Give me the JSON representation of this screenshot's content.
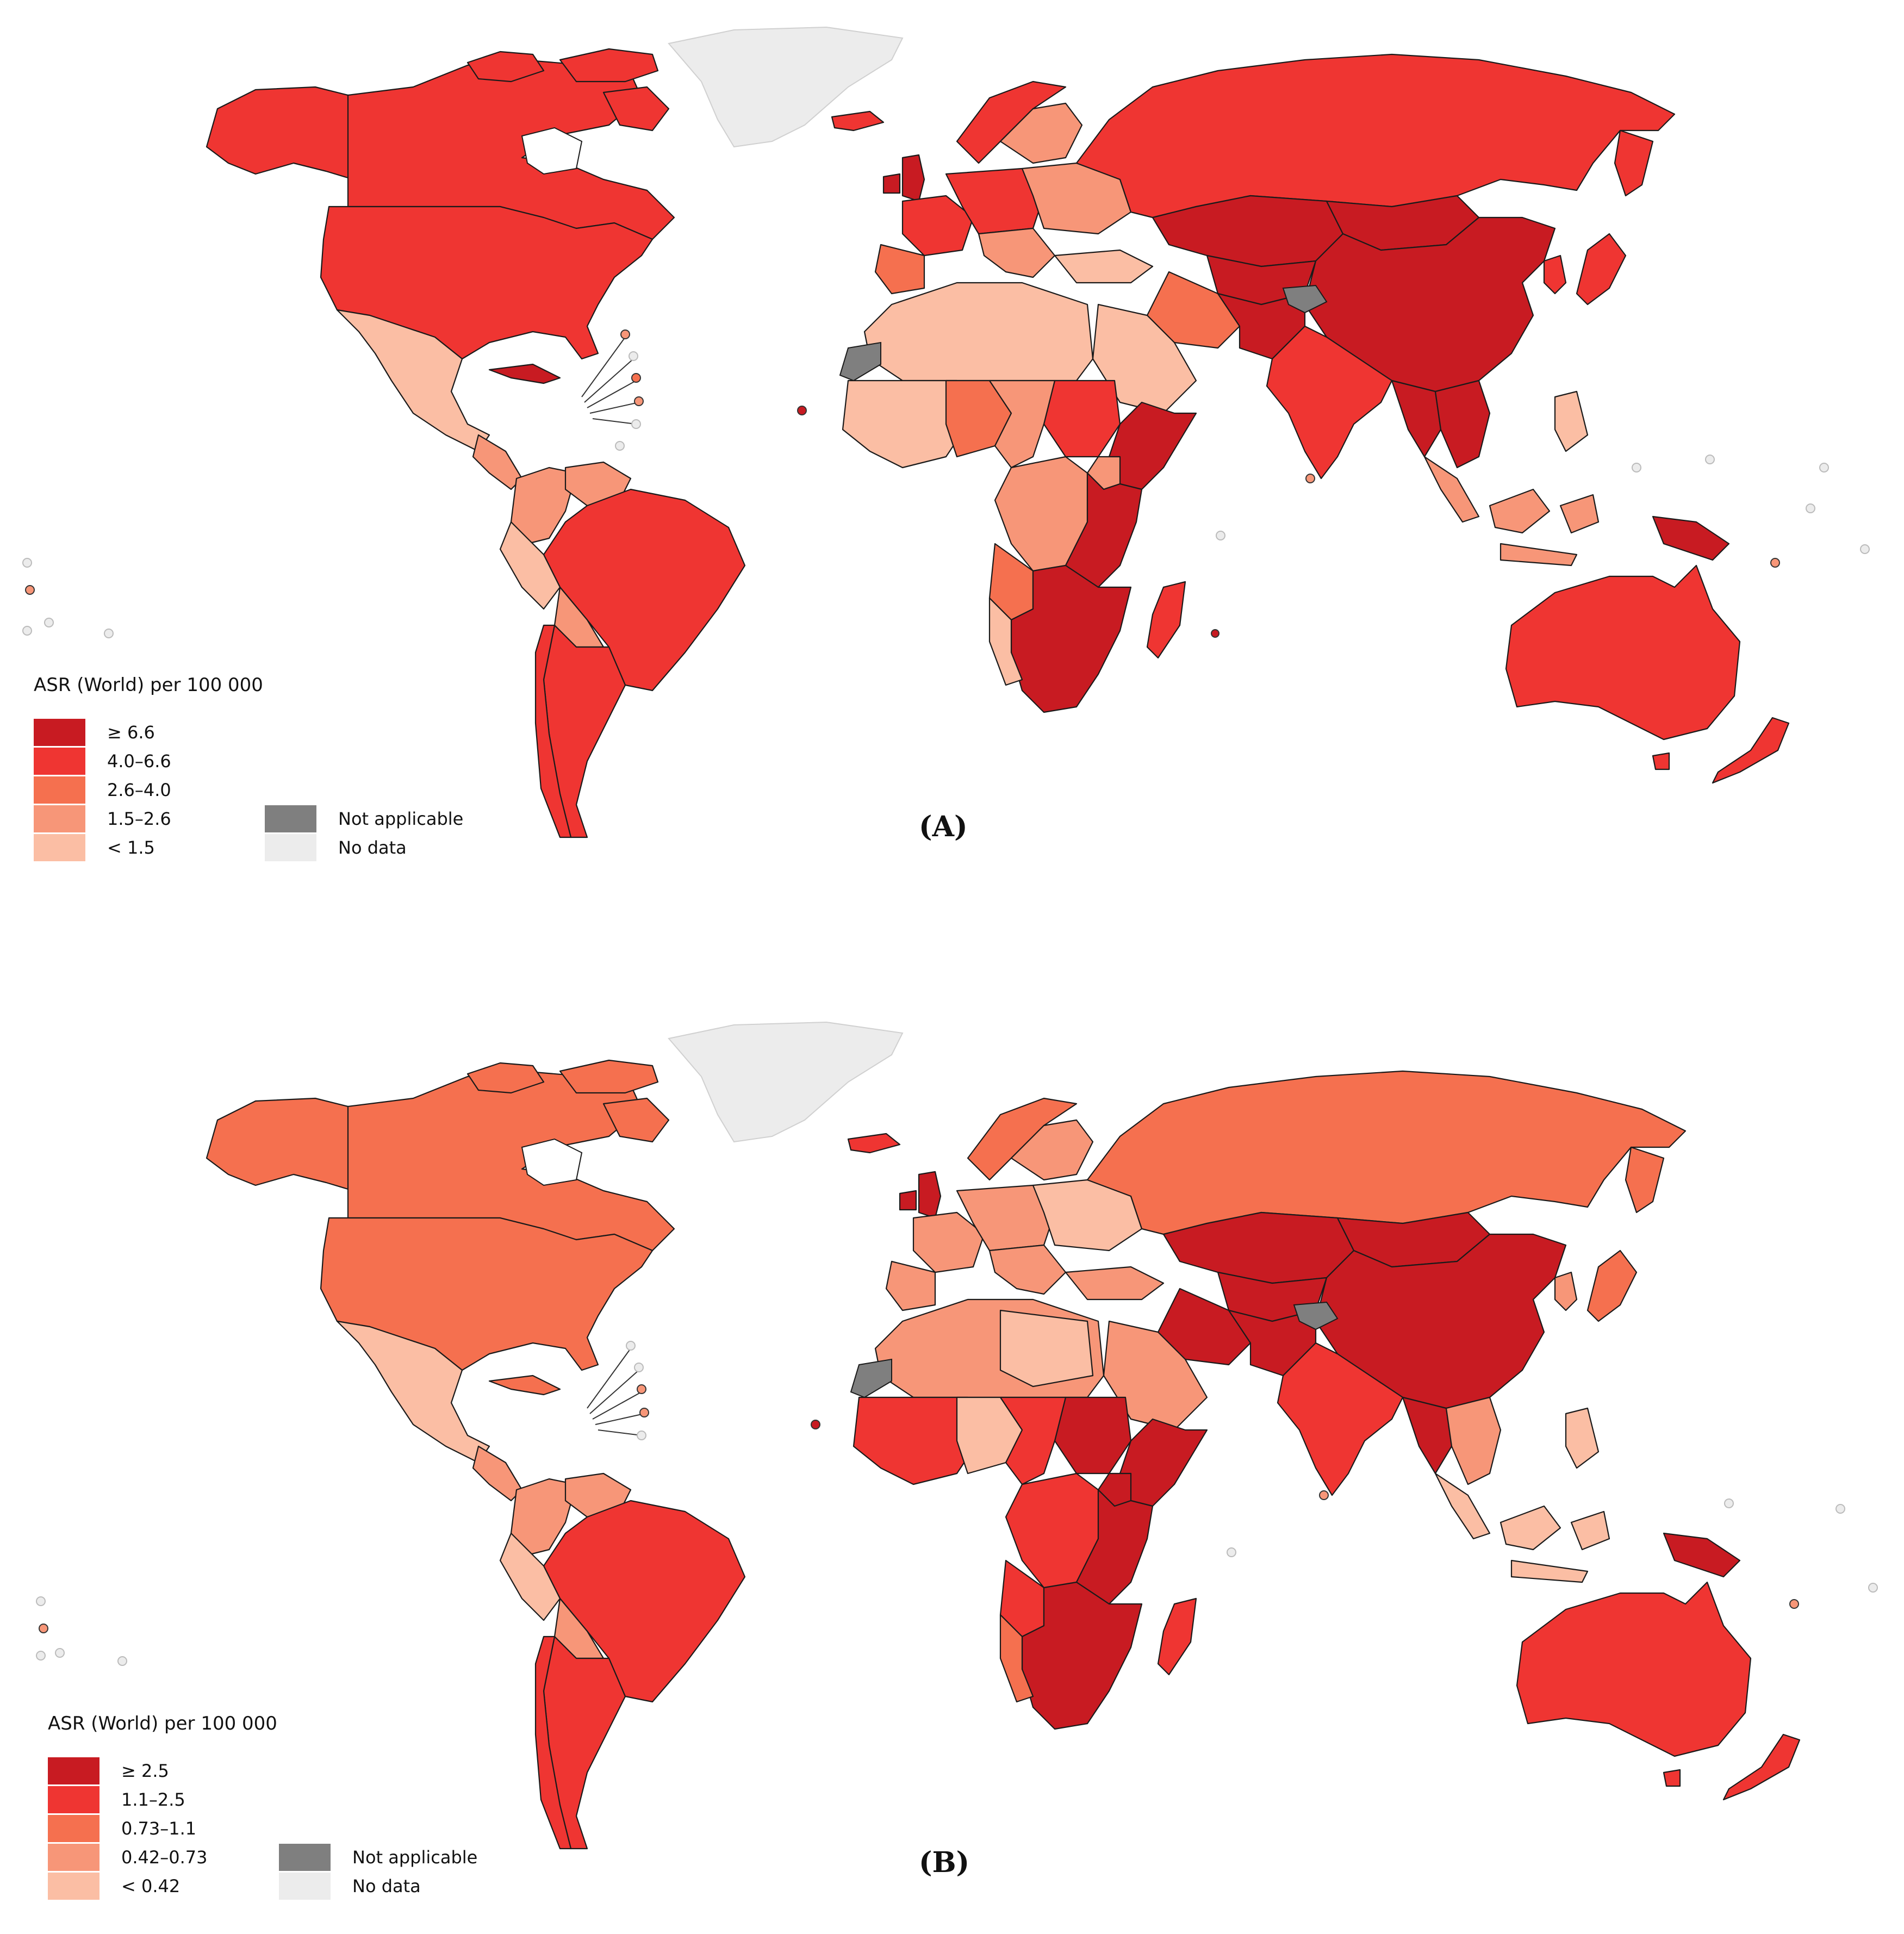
{
  "colors": {
    "level5": "#c81b22",
    "level4": "#ef3532",
    "level3": "#f5704f",
    "level2": "#f79678",
    "level1": "#fbbea4",
    "not_applicable": "#7f7f7f",
    "no_data": "#ececec"
  },
  "panel_a": {
    "label": "(A)",
    "legend_title": "ASR (World) per 100 000",
    "legend": [
      {
        "label": "≥ 6.6",
        "color": "#c81b22"
      },
      {
        "label": "4.0–6.6",
        "color": "#ef3532"
      },
      {
        "label": "2.6–4.0",
        "color": "#f5704f"
      },
      {
        "label": "1.5–2.6",
        "color": "#f79678"
      },
      {
        "label": "< 1.5",
        "color": "#fbbea4"
      }
    ],
    "not_applicable": "Not applicable",
    "no_data": "No data"
  },
  "panel_b": {
    "label": "(B)",
    "legend_title": "ASR (World) per 100 000",
    "legend": [
      {
        "label": "≥ 2.5",
        "color": "#c81b22"
      },
      {
        "label": "1.1–2.5",
        "color": "#ef3532"
      },
      {
        "label": "0.73–1.1",
        "color": "#f5704f"
      },
      {
        "label": "0.42–0.73",
        "color": "#f79678"
      },
      {
        "label": "< 0.42",
        "color": "#fbbea4"
      }
    ],
    "not_applicable": "Not applicable",
    "no_data": "No data"
  }
}
